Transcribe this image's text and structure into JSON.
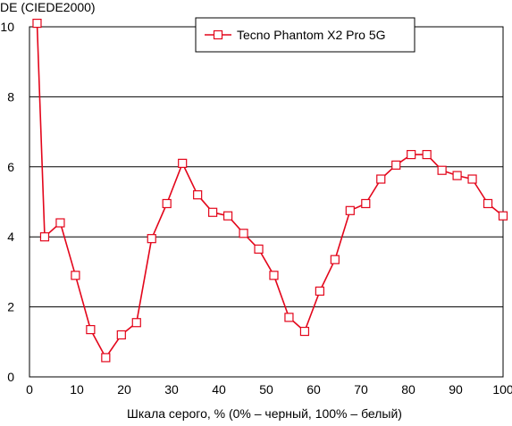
{
  "chart_data": {
    "type": "line",
    "title": "",
    "ylabel": "DE (CIEDE2000)",
    "xlabel": "Шкала серого, % (0% – черный, 100% – белый)",
    "xlim": [
      0,
      100
    ],
    "ylim": [
      0,
      10
    ],
    "xticks": [
      0,
      10,
      20,
      30,
      40,
      50,
      60,
      70,
      80,
      90,
      100
    ],
    "yticks": [
      0,
      2,
      4,
      6,
      8,
      10
    ],
    "grid": "horizontal",
    "legend_position": "top-right",
    "series": [
      {
        "name": "Tecno Phantom X2 Pro 5G",
        "color": "#e3061b",
        "marker": "square-hollow",
        "x": [
          1.6,
          3.2,
          6.5,
          9.7,
          12.9,
          16.1,
          19.4,
          22.6,
          25.8,
          29.0,
          32.3,
          35.5,
          38.7,
          41.9,
          45.2,
          48.4,
          51.6,
          54.8,
          58.1,
          61.3,
          64.5,
          67.7,
          71.0,
          74.2,
          77.4,
          80.6,
          83.9,
          87.1,
          90.3,
          93.5,
          96.8,
          100.0
        ],
        "y": [
          10.1,
          4.0,
          4.4,
          2.9,
          1.35,
          0.55,
          1.2,
          1.55,
          3.95,
          4.95,
          6.1,
          5.2,
          4.7,
          4.6,
          4.1,
          3.65,
          2.9,
          1.7,
          1.3,
          2.45,
          3.35,
          4.75,
          4.95,
          5.65,
          6.05,
          6.35,
          6.35,
          5.9,
          5.75,
          5.65,
          4.95,
          4.6
        ]
      }
    ]
  }
}
